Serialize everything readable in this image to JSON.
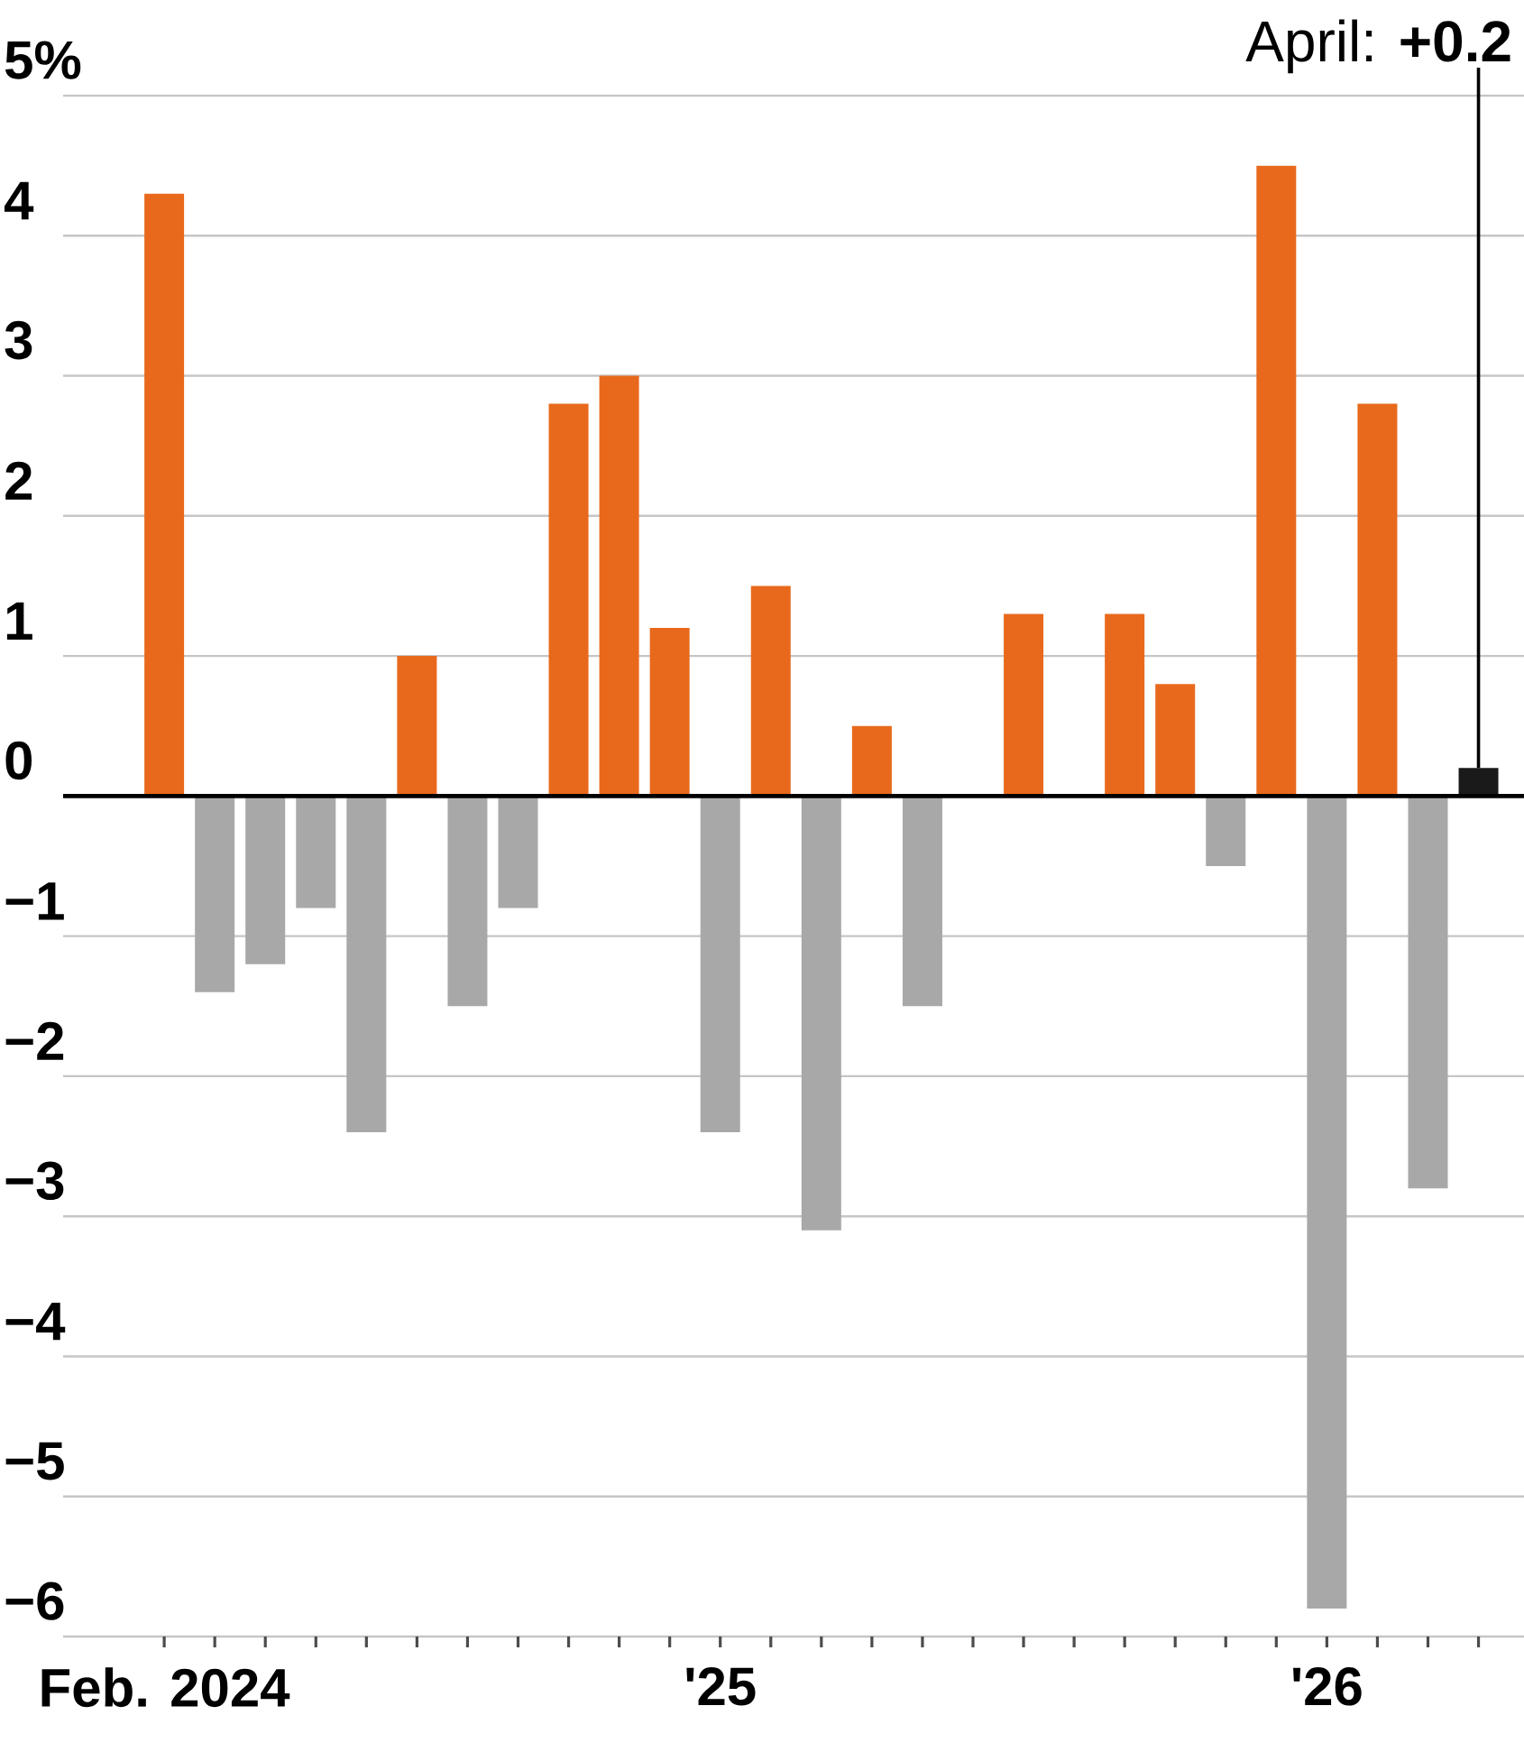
{
  "chart_data": {
    "type": "bar",
    "categories": [
      "Feb. 2024",
      null,
      null,
      null,
      null,
      null,
      null,
      null,
      null,
      null,
      null,
      "'25",
      null,
      null,
      null,
      null,
      null,
      null,
      null,
      null,
      null,
      null,
      null,
      "'26",
      null,
      null,
      null
    ],
    "values": [
      4.3,
      -1.4,
      -1.2,
      -0.8,
      -2.4,
      1.0,
      -1.5,
      -0.8,
      2.8,
      3.0,
      1.2,
      -2.4,
      1.5,
      -3.1,
      0.5,
      -1.5,
      0,
      1.3,
      0,
      1.3,
      0.8,
      -0.5,
      4.5,
      -5.8,
      2.8,
      -2.8,
      0.2
    ],
    "colors": [
      "#e8691c",
      "#a8a8a8",
      "#a8a8a8",
      "#a8a8a8",
      "#a8a8a8",
      "#e8691c",
      "#a8a8a8",
      "#a8a8a8",
      "#e8691c",
      "#e8691c",
      "#e8691c",
      "#a8a8a8",
      "#e8691c",
      "#a8a8a8",
      "#e8691c",
      "#a8a8a8",
      "#e8691c",
      "#e8691c",
      "#e8691c",
      "#e8691c",
      "#e8691c",
      "#a8a8a8",
      "#e8691c",
      "#a8a8a8",
      "#e8691c",
      "#a8a8a8",
      "#1a1a1a"
    ],
    "ylim": [
      -6,
      5
    ],
    "yticks": [
      {
        "value": -6,
        "label": "−6"
      },
      {
        "value": -5,
        "label": "−5"
      },
      {
        "value": -4,
        "label": "−4"
      },
      {
        "value": -3,
        "label": "−3"
      },
      {
        "value": -2,
        "label": "−2"
      },
      {
        "value": -1,
        "label": "−1"
      },
      0,
      1,
      2,
      3,
      4,
      {
        "value": 5,
        "label": "5%"
      }
    ],
    "grid": "y",
    "annotations": [
      "April: **+0.2**"
    ]
  }
}
